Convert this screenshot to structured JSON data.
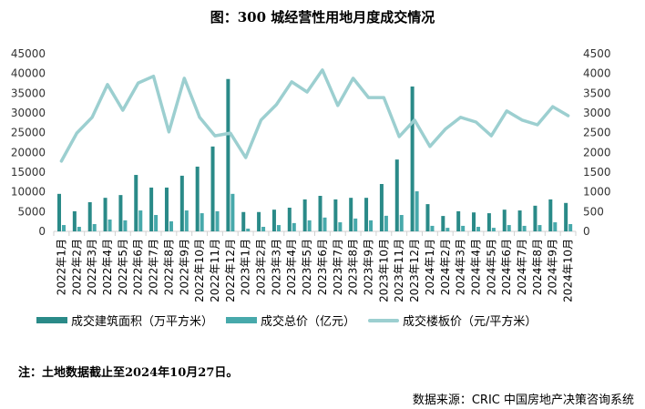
{
  "title": "图：300 城经营性用地月度成交情况",
  "note": "注：土地数据截止至2024年10月27日。",
  "source": "数据来源：CRIC 中国房地产决策咨询系统",
  "colors": {
    "area": "#2a8a88",
    "total": "#47a9ab",
    "price": "#9ccfd0"
  },
  "chart_data": {
    "type": "bar+line",
    "categories": [
      "2022年1月",
      "2022年2月",
      "2022年3月",
      "2022年4月",
      "2022年5月",
      "2022年6月",
      "2022年7月",
      "2022年8月",
      "2022年9月",
      "2022年10月",
      "2022年11月",
      "2022年12月",
      "2023年1月",
      "2023年2月",
      "2023年3月",
      "2023年4月",
      "2023年5月",
      "2023年6月",
      "2023年7月",
      "2023年8月",
      "2023年9月",
      "2023年10月",
      "2023年11月",
      "2023年12月",
      "2024年1月",
      "2024年2月",
      "2024年3月",
      "2024年4月",
      "2024年5月",
      "2024年6月",
      "2024年7月",
      "2024年8月",
      "2024年9月",
      "2024年10月"
    ],
    "series": [
      {
        "name": "成交建筑面积（万平方米）",
        "type": "bar",
        "axis": "left",
        "values": [
          9500,
          5100,
          7400,
          8500,
          9200,
          14300,
          11100,
          11100,
          14100,
          16400,
          21500,
          38600,
          4900,
          4900,
          5500,
          6000,
          8100,
          9000,
          8100,
          8500,
          8500,
          12000,
          18200,
          36700,
          6900,
          3900,
          5100,
          4800,
          4600,
          5500,
          5300,
          6500,
          8100,
          7200
        ]
      },
      {
        "name": "成交总价（亿元）",
        "type": "bar",
        "axis": "right",
        "values": [
          160,
          115,
          185,
          300,
          280,
          530,
          415,
          255,
          530,
          460,
          510,
          950,
          70,
          115,
          160,
          210,
          280,
          350,
          230,
          325,
          280,
          395,
          415,
          1015,
          140,
          90,
          140,
          115,
          90,
          160,
          140,
          160,
          230,
          185
        ]
      },
      {
        "name": "成交楼板价（元/平方米）",
        "type": "line",
        "axis": "right",
        "values": [
          1780,
          2490,
          2890,
          3720,
          3070,
          3760,
          3930,
          2520,
          3880,
          2890,
          2420,
          2490,
          1870,
          2820,
          3210,
          3790,
          3530,
          4090,
          3190,
          3880,
          3390,
          3390,
          2400,
          2820,
          2150,
          2590,
          2890,
          2770,
          2420,
          3050,
          2820,
          2700,
          3160,
          2930
        ]
      }
    ],
    "y_left": {
      "range": [
        0,
        45000
      ],
      "ticks": [
        "0",
        "5000",
        "10000",
        "15000",
        "20000",
        "25000",
        "30000",
        "35000",
        "40000",
        "45000"
      ]
    },
    "y_right": {
      "range": [
        0,
        4500
      ],
      "ticks": [
        "0",
        "500",
        "1000",
        "1500",
        "2000",
        "2500",
        "3000",
        "3500",
        "4000",
        "4500"
      ]
    },
    "grid": false,
    "legend": "bottom"
  }
}
